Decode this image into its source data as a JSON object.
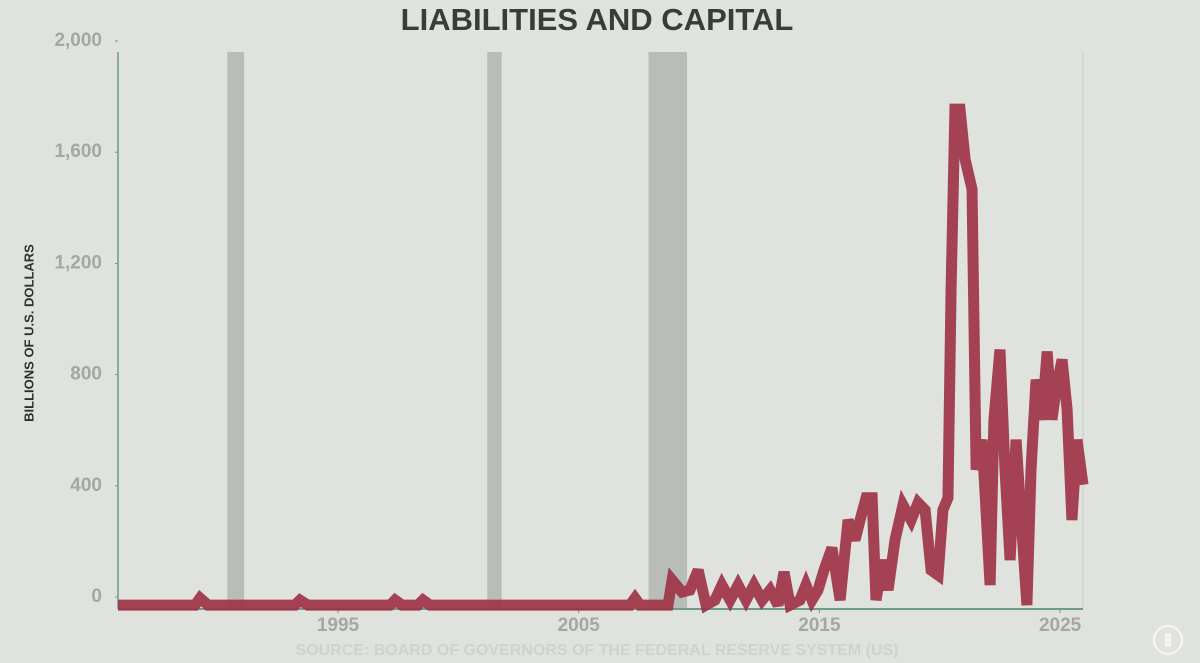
{
  "chart_data": {
    "type": "line",
    "title": "LIABILITIES AND CAPITAL",
    "y_label": "BILLIONS OF U.S. DOLLARS",
    "source": "SOURCE: BOARD OF GOVERNORS OF THE FEDERAL RESERVE SYSTEM (US)",
    "color": "#9e3347",
    "band_color": "#b9bdb7",
    "x": [
      1985.86,
      1989.06,
      1989.27,
      1989.6,
      1993.21,
      1993.42,
      1993.75,
      1997.16,
      1997.37,
      1997.66,
      1998.32,
      1998.53,
      1998.82,
      2007.13,
      2007.34,
      2007.55,
      2008.71,
      2008.88,
      2009.29,
      2009.62,
      2009.96,
      2010.29,
      2010.66,
      2010.95,
      2011.29,
      2011.62,
      2011.95,
      2012.28,
      2012.62,
      2012.95,
      2013.28,
      2013.53,
      2013.78,
      2014.19,
      2014.44,
      2014.69,
      2014.94,
      2015.19,
      2015.52,
      2015.86,
      2016.19,
      2016.48,
      2016.69,
      2016.94,
      2017.19,
      2017.35,
      2017.64,
      2017.85,
      2018.14,
      2018.47,
      2018.81,
      2019.1,
      2019.39,
      2019.64,
      2019.93,
      2020.13,
      2020.34,
      2020.47,
      2020.63,
      2020.84,
      2021.05,
      2021.34,
      2021.51,
      2021.76,
      2022.09,
      2022.25,
      2022.5,
      2022.71,
      2022.92,
      2023.17,
      2023.33,
      2023.62,
      2023.79,
      2024.0,
      2024.25,
      2024.46,
      2024.66,
      2024.83,
      2025.08,
      2025.29,
      2025.49,
      2025.7,
      2025.95
    ],
    "values": [
      -29,
      -29,
      -4,
      -29,
      -29,
      -11,
      -29,
      -29,
      -11,
      -29,
      -29,
      -11,
      -29,
      -29,
      -4,
      -29,
      -29,
      61,
      18,
      25,
      97,
      -29,
      -11,
      43,
      -11,
      43,
      -11,
      43,
      -11,
      25,
      -29,
      90,
      -29,
      -11,
      43,
      -11,
      25,
      97,
      177,
      -11,
      277,
      205,
      277,
      357,
      357,
      -11,
      133,
      25,
      205,
      331,
      277,
      339,
      313,
      97,
      79,
      313,
      357,
      1107,
      1755,
      1755,
      1575,
      1467,
      458,
      566,
      43,
      638,
      890,
      458,
      133,
      566,
      350,
      -29,
      458,
      782,
      638,
      883,
      638,
      746,
      854,
      674,
      277,
      566,
      404
    ],
    "shaded_ranges": [
      [
        1990.4,
        1991.1
      ],
      [
        2001.2,
        2001.8
      ],
      [
        2007.9,
        2009.5
      ]
    ],
    "xlim": [
      1985.86,
      2025.95
    ],
    "ylim": [
      -43,
      2000
    ],
    "xticks": [
      1995,
      2005,
      2015,
      2025
    ],
    "yticks": [
      {
        "value": 2000,
        "label": "2,000"
      },
      {
        "value": 1600,
        "label": "1,600"
      },
      {
        "value": 1200,
        "label": "1,200"
      },
      800,
      400,
      0
    ]
  }
}
